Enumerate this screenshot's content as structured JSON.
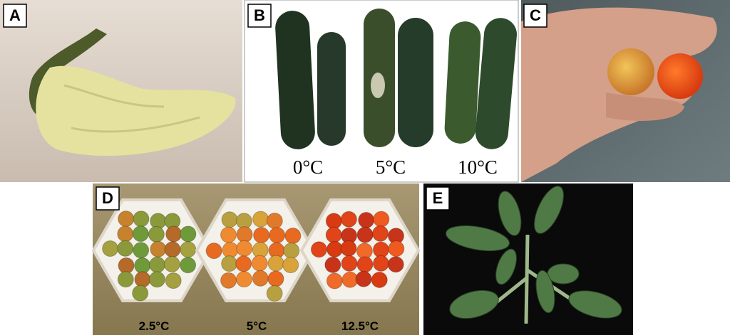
{
  "panels": [
    {
      "label": "A"
    },
    {
      "label": "B",
      "captions": [
        "0°C",
        "5°C",
        "10°C"
      ]
    },
    {
      "label": "C"
    },
    {
      "label": "D",
      "captions": [
        "2.5°C",
        "5°C",
        "12.5°C"
      ]
    },
    {
      "label": "E"
    }
  ]
}
